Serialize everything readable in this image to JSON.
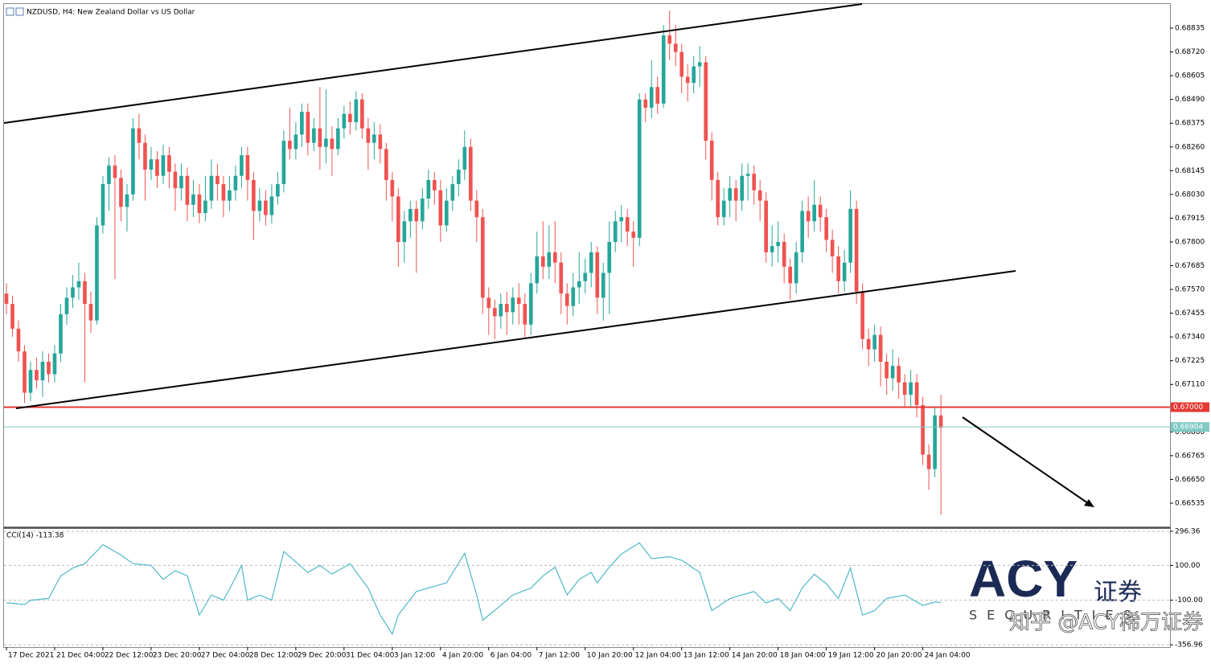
{
  "chart_data": {
    "type": "candlestick",
    "title": "NZDUSD, H4: New Zealand Dollar vs US Dollar",
    "up_color": "#26a69a",
    "down_color": "#ef5350",
    "open": [
      0.6755,
      0.675,
      0.6738,
      0.6727,
      0.6707,
      0.6718,
      0.6713,
      0.6722,
      0.6716,
      0.6726,
      0.6745,
      0.6753,
      0.6758,
      0.6761,
      0.675,
      0.6742,
      0.6788,
      0.6808,
      0.6817,
      0.6811,
      0.6797,
      0.6803,
      0.6835,
      0.6828,
      0.6815,
      0.682,
      0.6812,
      0.6822,
      0.6814,
      0.6806,
      0.6812,
      0.6798,
      0.6803,
      0.6794,
      0.68,
      0.6812,
      0.6808,
      0.68,
      0.6805,
      0.6812,
      0.6822,
      0.681,
      0.6795,
      0.68,
      0.6793,
      0.6802,
      0.6808,
      0.6829,
      0.6825,
      0.6832,
      0.6843,
      0.6828,
      0.6835,
      0.6826,
      0.683,
      0.6825,
      0.6835,
      0.6842,
      0.6838,
      0.6849,
      0.6835,
      0.6828,
      0.6832,
      0.6825,
      0.681,
      0.6802,
      0.678,
      0.679,
      0.6796,
      0.679,
      0.6801,
      0.681,
      0.6805,
      0.6788,
      0.68,
      0.6808,
      0.6815,
      0.6826,
      0.68,
      0.6792,
      0.6753,
      0.6748,
      0.6744,
      0.675,
      0.6746,
      0.6753,
      0.675,
      0.674,
      0.676,
      0.6773,
      0.6768,
      0.6775,
      0.677,
      0.6755,
      0.6749,
      0.6758,
      0.6761,
      0.6765,
      0.6775,
      0.6753,
      0.6765,
      0.678,
      0.679,
      0.6792,
      0.6785,
      0.6782,
      0.6849,
      0.6845,
      0.6855,
      0.6847,
      0.688,
      0.6876,
      0.6872,
      0.686,
      0.6857,
      0.6865,
      0.6867,
      0.6829,
      0.681,
      0.6792,
      0.68,
      0.6806,
      0.68,
      0.6812,
      0.6813,
      0.6805,
      0.68,
      0.6775,
      0.6778,
      0.678,
      0.6768,
      0.676,
      0.6775,
      0.6795,
      0.679,
      0.6798,
      0.6792,
      0.6781,
      0.6773,
      0.6761,
      0.677,
      0.6796,
      0.6756,
      0.6733,
      0.6728,
      0.6735,
      0.6722,
      0.6714,
      0.672,
      0.6712,
      0.6706,
      0.6712,
      0.6701,
      0.6677,
      0.667,
      0.6696
    ],
    "high": [
      0.676,
      0.6754,
      0.6742,
      0.673,
      0.6722,
      0.6724,
      0.6727,
      0.6726,
      0.673,
      0.675,
      0.6758,
      0.6764,
      0.677,
      0.6765,
      0.6756,
      0.6792,
      0.6812,
      0.6821,
      0.6822,
      0.6815,
      0.6808,
      0.684,
      0.6842,
      0.6832,
      0.6826,
      0.6824,
      0.6827,
      0.6826,
      0.6818,
      0.6818,
      0.6816,
      0.681,
      0.6808,
      0.6812,
      0.682,
      0.6818,
      0.6812,
      0.6812,
      0.6817,
      0.6826,
      0.6826,
      0.6814,
      0.6806,
      0.6805,
      0.6808,
      0.6814,
      0.6834,
      0.6845,
      0.6838,
      0.6847,
      0.6847,
      0.684,
      0.6855,
      0.6854,
      0.6836,
      0.684,
      0.6846,
      0.6848,
      0.6853,
      0.6852,
      0.684,
      0.6838,
      0.6837,
      0.6828,
      0.6814,
      0.6806,
      0.6795,
      0.68,
      0.68,
      0.6806,
      0.6815,
      0.6814,
      0.681,
      0.6806,
      0.6812,
      0.682,
      0.6834,
      0.683,
      0.6805,
      0.6796,
      0.6758,
      0.6752,
      0.6755,
      0.6756,
      0.6758,
      0.676,
      0.6755,
      0.6765,
      0.6785,
      0.679,
      0.6788,
      0.679,
      0.6775,
      0.676,
      0.6765,
      0.6775,
      0.6772,
      0.678,
      0.6778,
      0.677,
      0.679,
      0.6795,
      0.6798,
      0.6796,
      0.679,
      0.6852,
      0.6852,
      0.6868,
      0.686,
      0.6885,
      0.6892,
      0.6885,
      0.6876,
      0.6866,
      0.687,
      0.6875,
      0.687,
      0.6833,
      0.6814,
      0.6806,
      0.6812,
      0.681,
      0.6818,
      0.6818,
      0.6817,
      0.681,
      0.6804,
      0.6788,
      0.679,
      0.6784,
      0.6772,
      0.678,
      0.68,
      0.6802,
      0.681,
      0.6802,
      0.6796,
      0.6786,
      0.6778,
      0.6776,
      0.6805,
      0.68,
      0.676,
      0.6738,
      0.674,
      0.6739,
      0.6726,
      0.6728,
      0.6724,
      0.6716,
      0.6718,
      0.6716,
      0.6705,
      0.6682,
      0.67,
      0.6706
    ],
    "low": [
      0.6745,
      0.6734,
      0.6722,
      0.6702,
      0.6703,
      0.6709,
      0.6705,
      0.6712,
      0.6712,
      0.6722,
      0.674,
      0.6748,
      0.6752,
      0.6712,
      0.6736,
      0.674,
      0.6784,
      0.6795,
      0.6762,
      0.679,
      0.6785,
      0.68,
      0.682,
      0.68,
      0.681,
      0.6806,
      0.6808,
      0.6806,
      0.6795,
      0.68,
      0.679,
      0.6792,
      0.6789,
      0.679,
      0.6796,
      0.68,
      0.6792,
      0.6795,
      0.68,
      0.6806,
      0.68,
      0.6781,
      0.679,
      0.6788,
      0.6789,
      0.6798,
      0.6804,
      0.682,
      0.682,
      0.6826,
      0.6822,
      0.6824,
      0.6815,
      0.6818,
      0.6812,
      0.6822,
      0.683,
      0.6832,
      0.6834,
      0.683,
      0.6815,
      0.682,
      0.6818,
      0.68,
      0.679,
      0.6768,
      0.677,
      0.6782,
      0.6765,
      0.6786,
      0.6796,
      0.6798,
      0.678,
      0.6785,
      0.6795,
      0.6802,
      0.681,
      0.6795,
      0.678,
      0.6745,
      0.6735,
      0.6733,
      0.6738,
      0.6735,
      0.674,
      0.674,
      0.6733,
      0.6735,
      0.6755,
      0.6762,
      0.6762,
      0.676,
      0.6745,
      0.674,
      0.6744,
      0.675,
      0.6755,
      0.6758,
      0.6745,
      0.6742,
      0.6745,
      0.6775,
      0.678,
      0.6778,
      0.6768,
      0.6778,
      0.6838,
      0.684,
      0.6842,
      0.6845,
      0.6868,
      0.6865,
      0.6852,
      0.6848,
      0.6852,
      0.6855,
      0.682,
      0.68,
      0.6788,
      0.6788,
      0.6792,
      0.679,
      0.6795,
      0.68,
      0.6798,
      0.679,
      0.677,
      0.6768,
      0.677,
      0.676,
      0.6752,
      0.6755,
      0.677,
      0.6782,
      0.6785,
      0.6785,
      0.6775,
      0.6765,
      0.6755,
      0.6756,
      0.6765,
      0.675,
      0.6728,
      0.672,
      0.6722,
      0.671,
      0.6706,
      0.6708,
      0.6704,
      0.67,
      0.67,
      0.6695,
      0.6672,
      0.666,
      0.6666,
      0.6648
    ],
    "close": [
      0.675,
      0.6738,
      0.6727,
      0.6707,
      0.6718,
      0.6713,
      0.6722,
      0.6716,
      0.6726,
      0.6745,
      0.6753,
      0.6758,
      0.6761,
      0.675,
      0.6742,
      0.6788,
      0.6808,
      0.6817,
      0.6811,
      0.6797,
      0.6803,
      0.6835,
      0.6828,
      0.6815,
      0.682,
      0.6812,
      0.6822,
      0.6814,
      0.6806,
      0.6812,
      0.6798,
      0.6803,
      0.6794,
      0.68,
      0.6812,
      0.6808,
      0.68,
      0.6805,
      0.6812,
      0.6822,
      0.681,
      0.6795,
      0.68,
      0.6793,
      0.6802,
      0.6808,
      0.6829,
      0.6825,
      0.6832,
      0.6843,
      0.6828,
      0.6835,
      0.6826,
      0.683,
      0.6825,
      0.6835,
      0.6842,
      0.6838,
      0.6849,
      0.6835,
      0.6828,
      0.6832,
      0.6825,
      0.681,
      0.6802,
      0.678,
      0.679,
      0.6796,
      0.679,
      0.6801,
      0.681,
      0.6805,
      0.6788,
      0.68,
      0.6808,
      0.6815,
      0.6826,
      0.68,
      0.6792,
      0.6753,
      0.6748,
      0.6744,
      0.675,
      0.6746,
      0.6753,
      0.675,
      0.674,
      0.676,
      0.6773,
      0.6768,
      0.6775,
      0.677,
      0.6755,
      0.6749,
      0.6758,
      0.6761,
      0.6765,
      0.6775,
      0.6753,
      0.6765,
      0.678,
      0.679,
      0.6792,
      0.6785,
      0.6782,
      0.6849,
      0.6845,
      0.6855,
      0.6847,
      0.688,
      0.6876,
      0.6872,
      0.686,
      0.6857,
      0.6865,
      0.6867,
      0.6829,
      0.681,
      0.6792,
      0.68,
      0.6806,
      0.68,
      0.6812,
      0.6813,
      0.6805,
      0.68,
      0.6775,
      0.6778,
      0.678,
      0.6768,
      0.676,
      0.6775,
      0.6795,
      0.679,
      0.6798,
      0.6792,
      0.6781,
      0.6773,
      0.6761,
      0.677,
      0.6796,
      0.6756,
      0.6733,
      0.6728,
      0.6735,
      0.6722,
      0.6714,
      0.672,
      0.6712,
      0.6706,
      0.6712,
      0.6701,
      0.6677,
      0.667,
      0.6696,
      0.669
    ],
    "xlim": [
      -0.4,
      193
    ],
    "xticks": [
      {
        "value": 0,
        "label": "17 Dec 2021"
      },
      {
        "value": 8,
        "label": "21 Dec 04:00"
      },
      {
        "value": 16,
        "label": "22 Dec 12:00"
      },
      {
        "value": 24,
        "label": "23 Dec 20:00"
      },
      {
        "value": 32,
        "label": "27 Dec 04:00"
      },
      {
        "value": 40,
        "label": "28 Dec 12:00"
      },
      {
        "value": 48,
        "label": "29 Dec 20:00"
      },
      {
        "value": 56,
        "label": "31 Dec 04:00"
      },
      {
        "value": 64,
        "label": "3 Jan 12:00"
      },
      {
        "value": 72,
        "label": "4 Jan 20:00"
      },
      {
        "value": 80,
        "label": "6 Jan 04:00"
      },
      {
        "value": 88,
        "label": "7 Jan 12:00"
      },
      {
        "value": 96,
        "label": "10 Jan 20:00"
      },
      {
        "value": 104,
        "label": "12 Jan 04:00"
      },
      {
        "value": 112,
        "label": "13 Jan 12:00"
      },
      {
        "value": 120,
        "label": "14 Jan 20:00"
      },
      {
        "value": 128,
        "label": "18 Jan 04:00"
      },
      {
        "value": 136,
        "label": "19 Jan 12:00"
      },
      {
        "value": 144,
        "label": "20 Jan 20:00"
      },
      {
        "value": 152,
        "label": "24 Jan 04:00"
      }
    ],
    "ylim": [
      0.66422,
      0.68952
    ],
    "yticks": [
      {
        "value": 0.68835,
        "label": "0.68835"
      },
      {
        "value": 0.6872,
        "label": "0.68720"
      },
      {
        "value": 0.68605,
        "label": "0.68605"
      },
      {
        "value": 0.6849,
        "label": "0.68490"
      },
      {
        "value": 0.68375,
        "label": "0.68375"
      },
      {
        "value": 0.6826,
        "label": "0.68260"
      },
      {
        "value": 0.68145,
        "label": "0.68145"
      },
      {
        "value": 0.6803,
        "label": "0.68030"
      },
      {
        "value": 0.67915,
        "label": "0.67915"
      },
      {
        "value": 0.678,
        "label": "0.67800"
      },
      {
        "value": 0.67685,
        "label": "0.67685"
      },
      {
        "value": 0.6757,
        "label": "0.67570"
      },
      {
        "value": 0.67455,
        "label": "0.67455"
      },
      {
        "value": 0.6734,
        "label": "0.67340"
      },
      {
        "value": 0.67225,
        "label": "0.67225"
      },
      {
        "value": 0.6711,
        "label": "0.67110"
      },
      {
        "value": 0.6688,
        "label": "0.66880"
      },
      {
        "value": 0.66765,
        "label": "0.66765"
      },
      {
        "value": 0.6665,
        "label": "0.66650"
      },
      {
        "value": 0.66535,
        "label": "0.66535"
      }
    ],
    "hlines": [
      {
        "value": 0.67,
        "label": "0.67000",
        "color": "#e53935"
      },
      {
        "value": 0.66904,
        "label": "0.66904",
        "color": "#80cbc4"
      }
    ],
    "indicator": {
      "title": "CCI(14) -113.38",
      "color": "#4fb8c8",
      "values": [
        -115,
        -118,
        -122,
        -125,
        -100,
        -97,
        -93,
        -90,
        -25,
        40,
        62,
        85,
        98,
        110,
        147,
        183,
        220,
        200,
        180,
        160,
        135,
        110,
        107,
        103,
        100,
        60,
        20,
        45,
        70,
        55,
        40,
        -72,
        -185,
        -128,
        -70,
        -85,
        -100,
        -35,
        30,
        100,
        -100,
        -85,
        -70,
        -85,
        -100,
        40,
        180,
        150,
        120,
        90,
        60,
        80,
        100,
        75,
        50,
        70,
        90,
        110,
        63,
        17,
        -30,
        -108,
        -185,
        -240,
        -295,
        -185,
        -140,
        -95,
        -50,
        -40,
        -30,
        -20,
        -10,
        0,
        57,
        113,
        170,
        50,
        -70,
        -215,
        -187,
        -158,
        -130,
        -100,
        -70,
        -57,
        -43,
        -30,
        5,
        40,
        65,
        90,
        10,
        -70,
        -25,
        20,
        40,
        60,
        0,
        45,
        90,
        128,
        165,
        187,
        208,
        230,
        185,
        140,
        143,
        147,
        150,
        140,
        130,
        107,
        83,
        60,
        -50,
        -160,
        -137,
        -113,
        -90,
        -80,
        -70,
        -60,
        -50,
        -83,
        -115,
        -103,
        -90,
        -125,
        -160,
        -95,
        -30,
        10,
        50,
        22,
        -5,
        -48,
        -90,
        -3,
        85,
        -50,
        -185,
        -173,
        -160,
        -125,
        -90,
        -83,
        -77,
        -70,
        -90,
        -110,
        -130,
        -120,
        -110,
        -113.38
      ],
      "ylim": [
        -370,
        310
      ],
      "yticks": [
        {
          "value": 296.36,
          "label": "296.36"
        },
        {
          "value": 100,
          "label": "100.00"
        },
        {
          "value": -100,
          "label": "-100.00"
        },
        {
          "value": -356.96,
          "label": "-356.96"
        }
      ]
    },
    "watermark": {
      "brand": "ACY",
      "brand_cn": "证券",
      "tagline": "SECURITIES",
      "credit": "知乎 @ACY稀万证券"
    }
  }
}
